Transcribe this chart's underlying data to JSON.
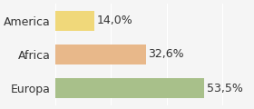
{
  "categories": [
    "America",
    "Africa",
    "Europa"
  ],
  "values": [
    14.0,
    32.6,
    53.5
  ],
  "labels": [
    "14,0%",
    "32,6%",
    "53,5%"
  ],
  "bar_colors": [
    "#f0d87a",
    "#e8b88a",
    "#a8c08a"
  ],
  "background_color": "#f5f5f5",
  "xlim": [
    0,
    70
  ],
  "bar_height": 0.58,
  "label_fontsize": 9,
  "tick_fontsize": 9
}
